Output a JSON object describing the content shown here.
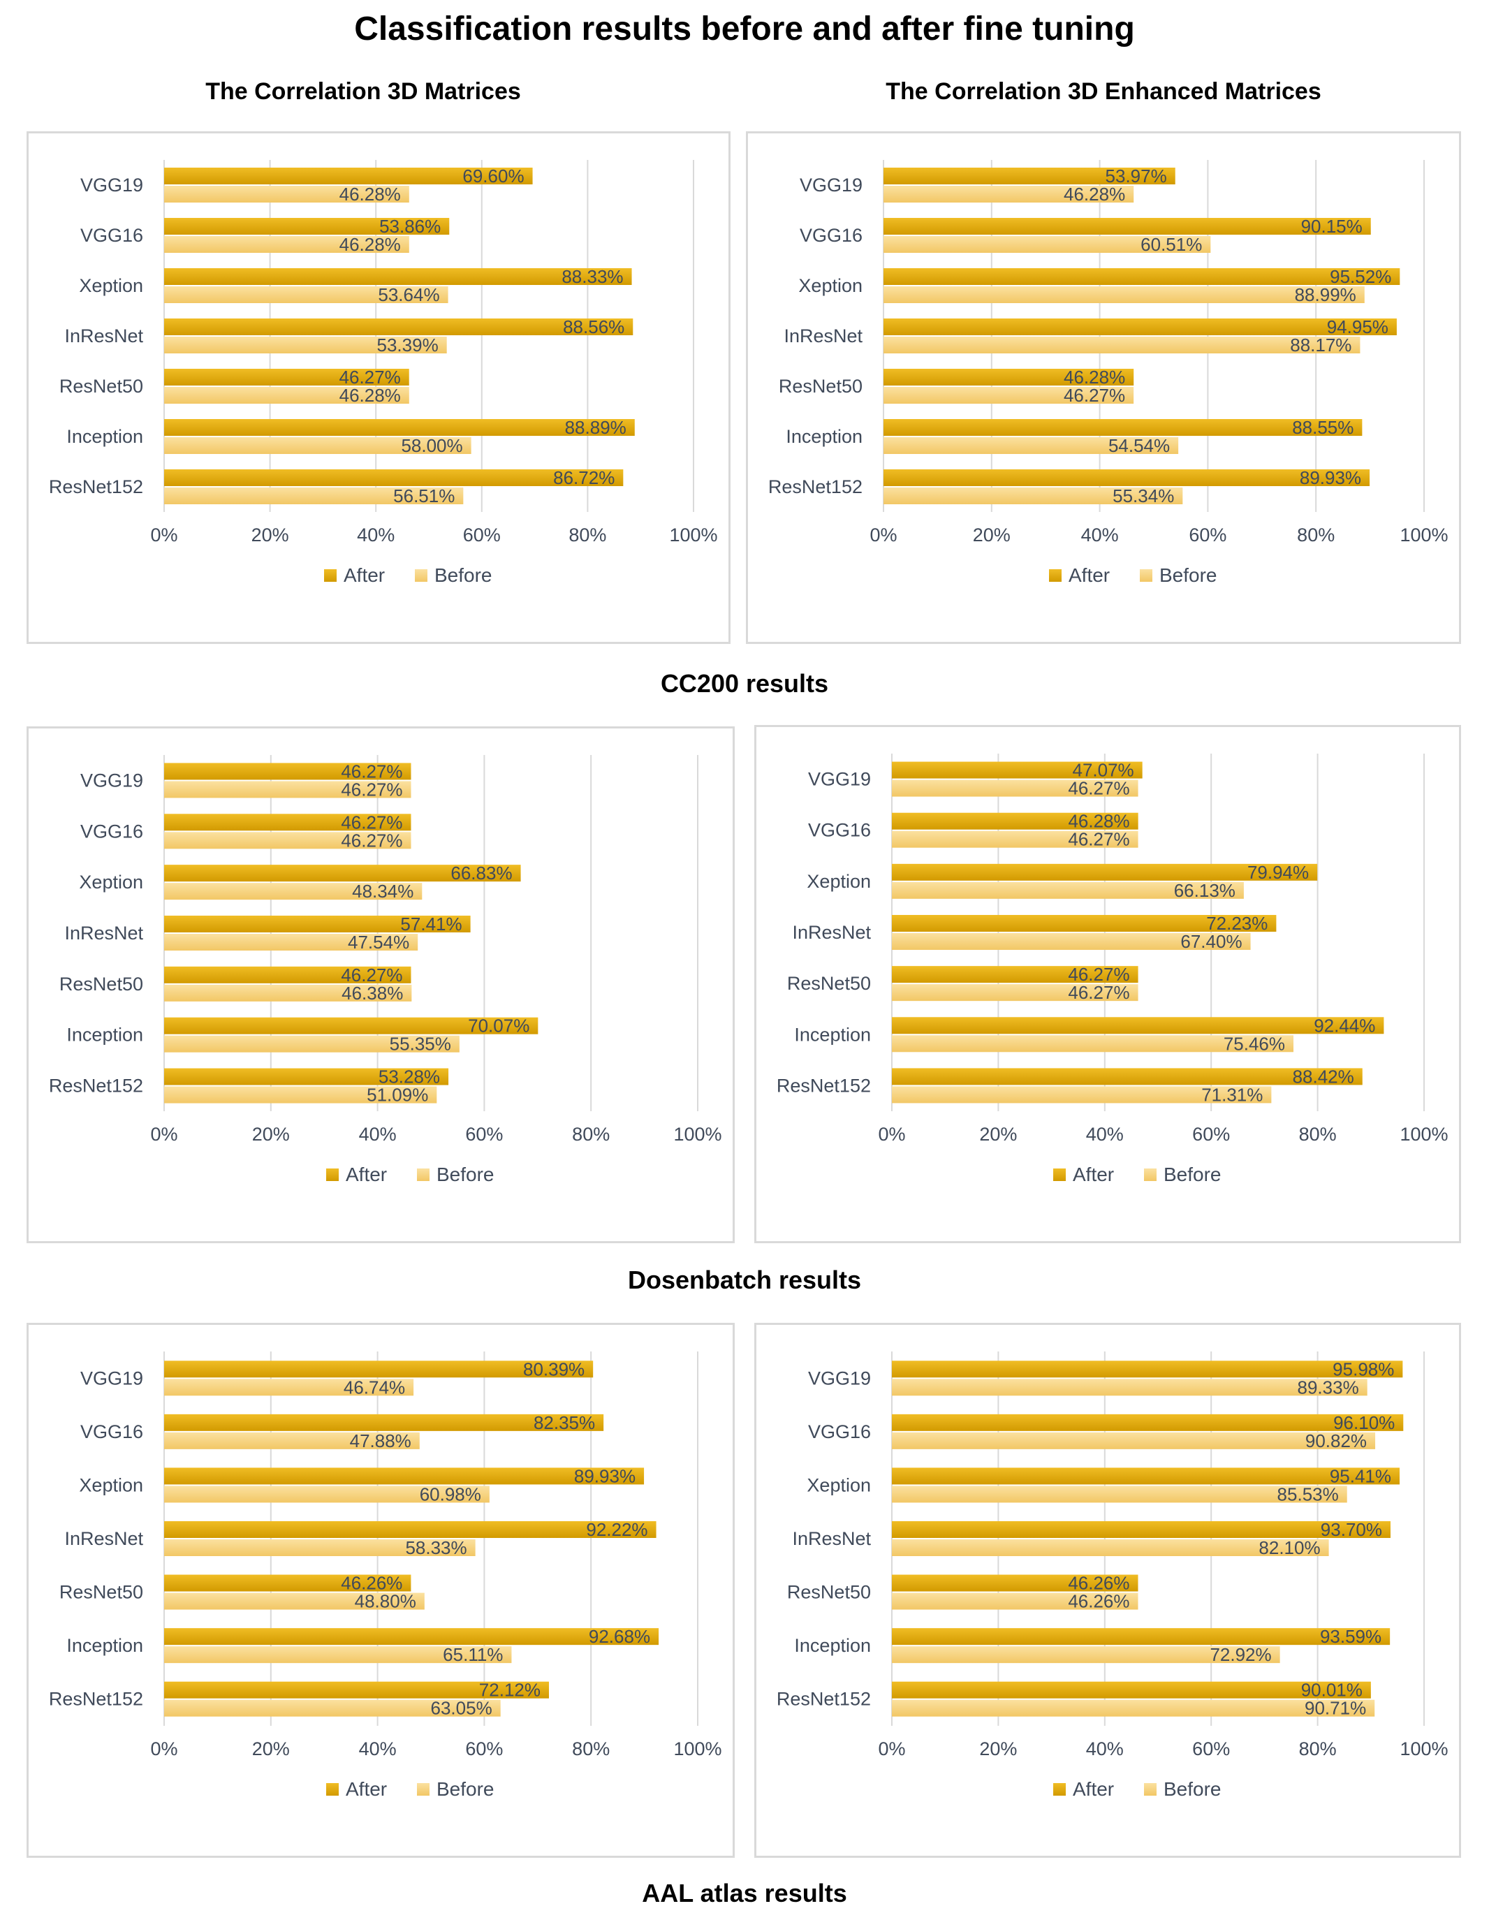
{
  "title": "Classification results before and after fine tuning",
  "column_titles": [
    "The Correlation 3D Matrices",
    "The Correlation 3D Enhanced Matrices"
  ],
  "section_labels": [
    "CC200 results",
    "Dosenbatch results",
    "AAL atlas results"
  ],
  "colors": {
    "after": "#e0a600",
    "before": "#f8d27e",
    "grid": "#d9d9d9",
    "border": "#d9d9d9",
    "text": "#404a5a"
  },
  "chart_data": [
    {
      "type": "bar",
      "orientation": "horizontal",
      "section": "CC200 results",
      "column": "The Correlation 3D Matrices",
      "categories": [
        "VGG19",
        "VGG16",
        "Xeption",
        "InResNet",
        "ResNet50",
        "Inception",
        "ResNet152"
      ],
      "series": [
        {
          "name": "After",
          "values": [
            69.6,
            53.86,
            88.33,
            88.56,
            46.27,
            88.89,
            86.72
          ],
          "labels": [
            "69.60%",
            "53.86%",
            "88.33%",
            "88.56%",
            "46.27%",
            "88.89%",
            "86.72%"
          ]
        },
        {
          "name": "Before",
          "values": [
            46.28,
            46.28,
            53.64,
            53.39,
            46.28,
            58.0,
            56.51
          ],
          "labels": [
            "46.28%",
            "46.28%",
            "53.64%",
            "53.39%",
            "46.28%",
            "58.00%",
            "56.51%"
          ]
        }
      ],
      "xlim": [
        0,
        100
      ],
      "xticks": [
        "0%",
        "20%",
        "40%",
        "60%",
        "80%",
        "100%"
      ],
      "legend": "bottom"
    },
    {
      "type": "bar",
      "orientation": "horizontal",
      "section": "CC200 results",
      "column": "The Correlation 3D Enhanced Matrices",
      "categories": [
        "VGG19",
        "VGG16",
        "Xeption",
        "InResNet",
        "ResNet50",
        "Inception",
        "ResNet152"
      ],
      "series": [
        {
          "name": "After",
          "values": [
            53.97,
            90.15,
            95.52,
            94.95,
            46.28,
            88.55,
            89.93
          ],
          "labels": [
            "53.97%",
            "90.15%",
            "95.52%",
            "94.95%",
            "46.28%",
            "88.55%",
            "89.93%"
          ]
        },
        {
          "name": "Before",
          "values": [
            46.28,
            60.51,
            88.99,
            88.17,
            46.27,
            54.54,
            55.34
          ],
          "labels": [
            "46.28%",
            "60.51%",
            "88.99%",
            "88.17%",
            "46.27%",
            "54.54%",
            "55.34%"
          ]
        }
      ],
      "xlim": [
        0,
        100
      ],
      "xticks": [
        "0%",
        "20%",
        "40%",
        "60%",
        "80%",
        "100%"
      ],
      "legend": "bottom"
    },
    {
      "type": "bar",
      "orientation": "horizontal",
      "section": "Dosenbatch results",
      "column": "The Correlation 3D Matrices",
      "categories": [
        "VGG19",
        "VGG16",
        "Xeption",
        "InResNet",
        "ResNet50",
        "Inception",
        "ResNet152"
      ],
      "series": [
        {
          "name": "After",
          "values": [
            46.27,
            46.27,
            66.83,
            57.41,
            46.27,
            70.07,
            53.28
          ],
          "labels": [
            "46.27%",
            "46.27%",
            "66.83%",
            "57.41%",
            "46.27%",
            "70.07%",
            "53.28%"
          ]
        },
        {
          "name": "Before",
          "values": [
            46.27,
            46.27,
            48.34,
            47.54,
            46.38,
            55.35,
            51.09
          ],
          "labels": [
            "46.27%",
            "46.27%",
            "48.34%",
            "47.54%",
            "46.38%",
            "55.35%",
            "51.09%"
          ]
        }
      ],
      "xlim": [
        0,
        100
      ],
      "xticks": [
        "0%",
        "20%",
        "40%",
        "60%",
        "80%",
        "100%"
      ],
      "legend": "bottom"
    },
    {
      "type": "bar",
      "orientation": "horizontal",
      "section": "Dosenbatch results",
      "column": "The Correlation 3D Enhanced Matrices",
      "categories": [
        "VGG19",
        "VGG16",
        "Xeption",
        "InResNet",
        "ResNet50",
        "Inception",
        "ResNet152"
      ],
      "series": [
        {
          "name": "After",
          "values": [
            47.07,
            46.28,
            79.94,
            72.23,
            46.27,
            92.44,
            88.42
          ],
          "labels": [
            "47.07%",
            "46.28%",
            "79.94%",
            "72.23%",
            "46.27%",
            "92.44%",
            "88.42%"
          ]
        },
        {
          "name": "Before",
          "values": [
            46.27,
            46.27,
            66.13,
            67.4,
            46.27,
            75.46,
            71.31
          ],
          "labels": [
            "46.27%",
            "46.27%",
            "66.13%",
            "67.40%",
            "46.27%",
            "75.46%",
            "71.31%"
          ]
        }
      ],
      "xlim": [
        0,
        100
      ],
      "xticks": [
        "0%",
        "20%",
        "40%",
        "60%",
        "80%",
        "100%"
      ],
      "legend": "bottom"
    },
    {
      "type": "bar",
      "orientation": "horizontal",
      "section": "AAL atlas results",
      "column": "The Correlation 3D Matrices",
      "categories": [
        "VGG19",
        "VGG16",
        "Xeption",
        "InResNet",
        "ResNet50",
        "Inception",
        "ResNet152"
      ],
      "series": [
        {
          "name": "After",
          "values": [
            80.39,
            82.35,
            89.93,
            92.22,
            46.26,
            92.68,
            72.12
          ],
          "labels": [
            "80.39%",
            "82.35%",
            "89.93%",
            "92.22%",
            "46.26%",
            "92.68%",
            "72.12%"
          ]
        },
        {
          "name": "Before",
          "values": [
            46.74,
            47.88,
            60.98,
            58.33,
            48.8,
            65.11,
            63.05
          ],
          "labels": [
            "46.74%",
            "47.88%",
            "60.98%",
            "58.33%",
            "48.80%",
            "65.11%",
            "63.05%"
          ]
        }
      ],
      "xlim": [
        0,
        100
      ],
      "xticks": [
        "0%",
        "20%",
        "40%",
        "60%",
        "80%",
        "100%"
      ],
      "legend": "bottom"
    },
    {
      "type": "bar",
      "orientation": "horizontal",
      "section": "AAL atlas results",
      "column": "The Correlation 3D Enhanced Matrices",
      "categories": [
        "VGG19",
        "VGG16",
        "Xeption",
        "InResNet",
        "ResNet50",
        "Inception",
        "ResNet152"
      ],
      "series": [
        {
          "name": "After",
          "values": [
            95.98,
            96.1,
            95.41,
            93.7,
            46.26,
            93.59,
            90.01
          ],
          "labels": [
            "95.98%",
            "96.10%",
            "95.41%",
            "93.70%",
            "46.26%",
            "93.59%",
            "90.01%"
          ]
        },
        {
          "name": "Before",
          "values": [
            89.33,
            90.82,
            85.53,
            82.1,
            46.26,
            72.92,
            90.71
          ],
          "labels": [
            "89.33%",
            "90.82%",
            "85.53%",
            "82.10%",
            "46.26%",
            "72.92%",
            "90.71%"
          ]
        }
      ],
      "xlim": [
        0,
        100
      ],
      "xticks": [
        "0%",
        "20%",
        "40%",
        "60%",
        "80%",
        "100%"
      ],
      "legend": "bottom"
    }
  ]
}
